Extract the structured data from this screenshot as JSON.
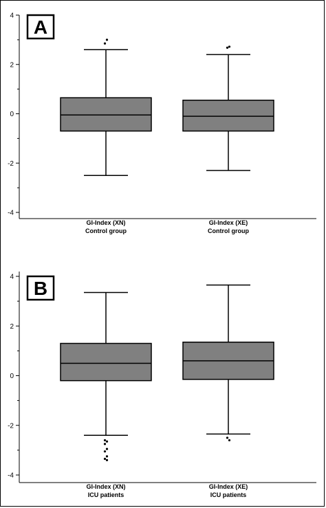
{
  "chart_data": [
    {
      "type": "box",
      "panel_label": "A",
      "ylim": [
        -4,
        4
      ],
      "y_ticks": [
        -4,
        -2,
        0,
        2,
        4
      ],
      "y_minor_ticks": [
        -3,
        -1,
        1,
        3
      ],
      "grid": false,
      "box_color": "#808080",
      "boxes": [
        {
          "label_line1": "GI-Index (XN)",
          "label_line2": "Control group",
          "whisker_low": -2.5,
          "q1": -0.7,
          "median": -0.05,
          "q3": 0.65,
          "whisker_high": 2.6,
          "outliers": [
            2.85,
            3.0
          ]
        },
        {
          "label_line1": "GI-Index (XE)",
          "label_line2": "Control group",
          "whisker_low": -2.3,
          "q1": -0.7,
          "median": -0.1,
          "q3": 0.55,
          "whisker_high": 2.4,
          "outliers": [
            2.68,
            2.72
          ]
        }
      ]
    },
    {
      "type": "box",
      "panel_label": "B",
      "ylim": [
        -4,
        4
      ],
      "y_ticks": [
        -4,
        -2,
        0,
        2,
        4
      ],
      "y_minor_ticks": [
        -3,
        -1,
        1,
        3
      ],
      "grid": false,
      "box_color": "#808080",
      "boxes": [
        {
          "label_line1": "GI-Index (XN)",
          "label_line2": "ICU patients",
          "whisker_low": -2.4,
          "q1": -0.2,
          "median": 0.5,
          "q3": 1.3,
          "whisker_high": 3.35,
          "outliers": [
            -2.6,
            -2.65,
            -2.75,
            -2.95,
            -3.05,
            -3.25,
            -3.35,
            -3.4
          ]
        },
        {
          "label_line1": "GI-Index (XE)",
          "label_line2": "ICU patients",
          "whisker_low": -2.35,
          "q1": -0.15,
          "median": 0.6,
          "q3": 1.35,
          "whisker_high": 3.65,
          "outliers": [
            -2.5,
            -2.6
          ]
        }
      ]
    }
  ]
}
